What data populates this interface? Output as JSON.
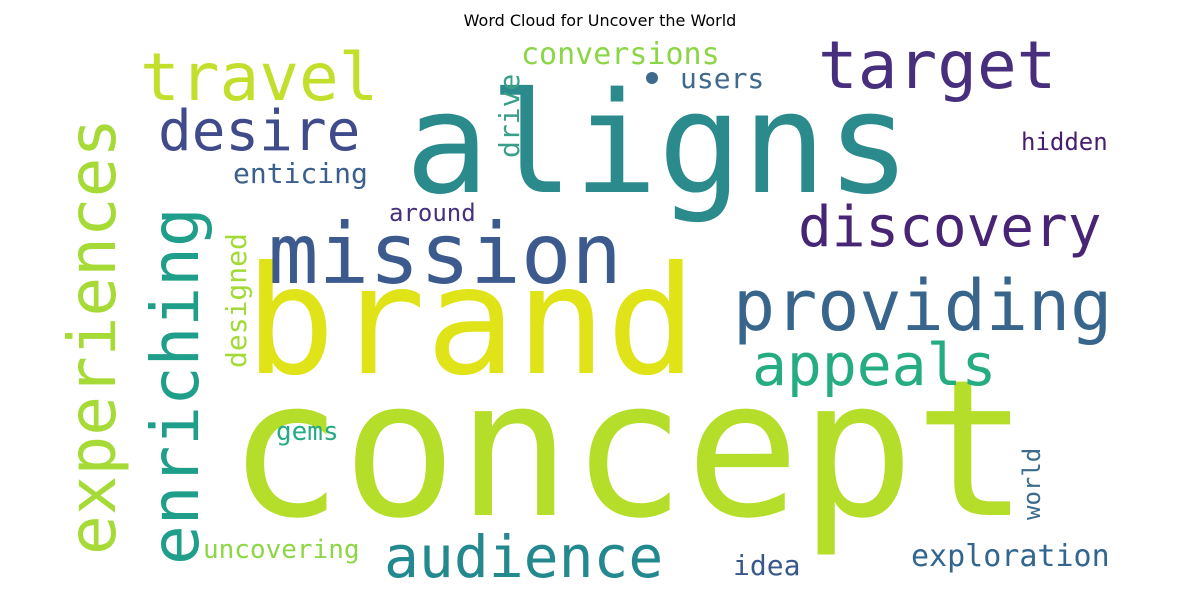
{
  "title": "Word Cloud for Uncover the World",
  "words": [
    {
      "text": "concept",
      "color": "#b5de2b"
    },
    {
      "text": "brand",
      "color": "#e0e318"
    },
    {
      "text": "aligns",
      "color": "#2a8a8c"
    },
    {
      "text": "mission",
      "color": "#3c5a8d"
    },
    {
      "text": "experiences",
      "color": "#a6db37"
    },
    {
      "text": "enriching",
      "color": "#1f9e89"
    },
    {
      "text": "providing",
      "color": "#38658b"
    },
    {
      "text": "travel",
      "color": "#c3df2c"
    },
    {
      "text": "target",
      "color": "#472f7d"
    },
    {
      "text": "audience",
      "color": "#23898e"
    },
    {
      "text": "appeals",
      "color": "#25ac82"
    },
    {
      "text": "discovery",
      "color": "#482475"
    },
    {
      "text": "desire",
      "color": "#3f4b8a"
    },
    {
      "text": "drive",
      "color": "#3a9f88"
    },
    {
      "text": "conversions",
      "color": "#8bd646"
    },
    {
      "text": "enticing",
      "color": "#3b5f8d"
    },
    {
      "text": "users",
      "color": "#3f6a8c"
    },
    {
      "text": "hidden",
      "color": "#471d6e"
    },
    {
      "text": "around",
      "color": "#46307e"
    },
    {
      "text": "designed",
      "color": "#a2da37"
    },
    {
      "text": "gems",
      "color": "#25ab82"
    },
    {
      "text": "world",
      "color": "#3c6b8c"
    },
    {
      "text": "uncovering",
      "color": "#8dd645"
    },
    {
      "text": "idea",
      "color": "#38588c"
    },
    {
      "text": "exploration",
      "color": "#32668e"
    }
  ]
}
